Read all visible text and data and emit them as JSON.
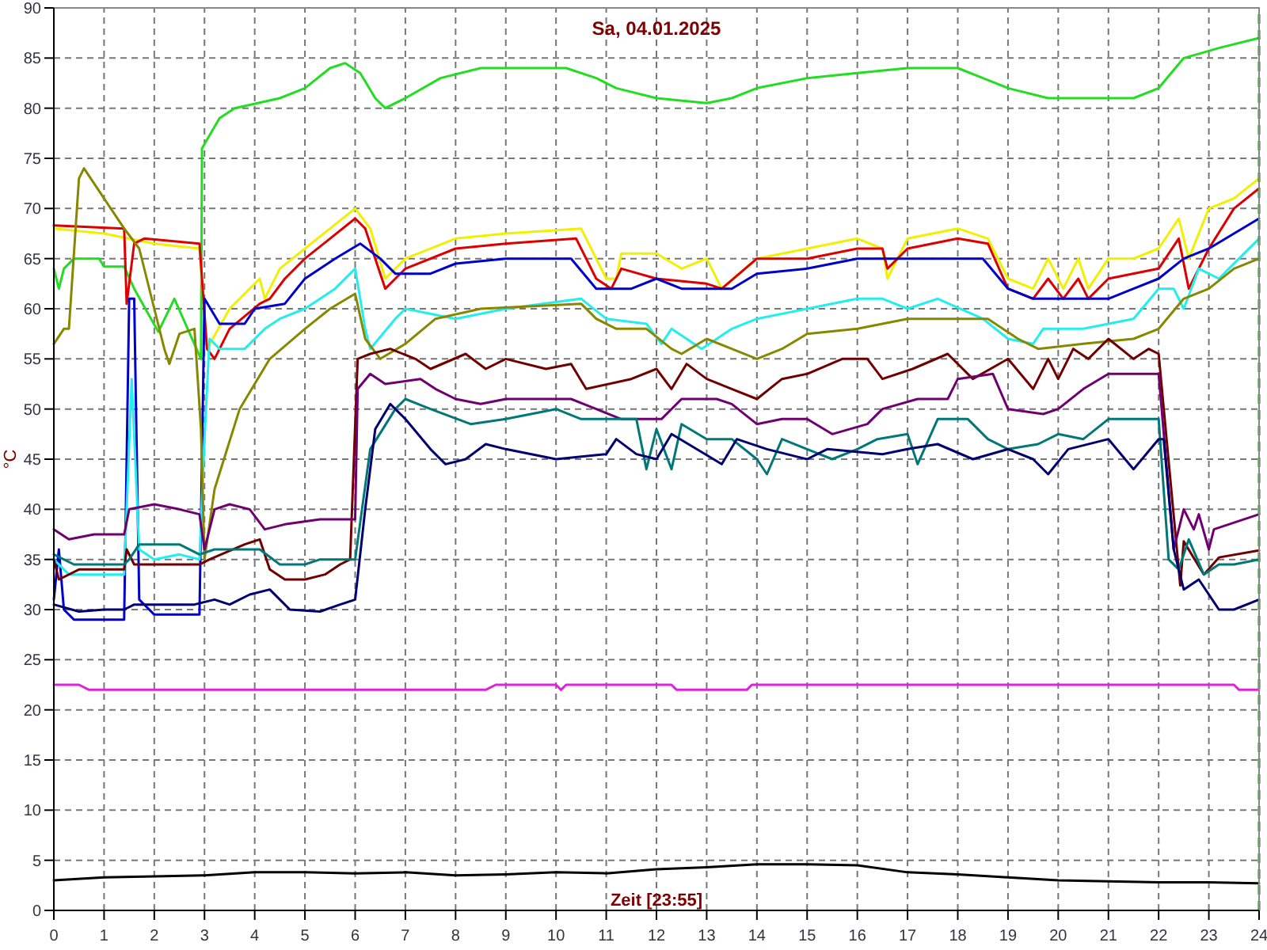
{
  "chart_data": {
    "type": "line",
    "title": "Sa, 04.01.2025",
    "xlabel": "Zeit [23:55]",
    "ylabel": "°C",
    "xlim": [
      0,
      24
    ],
    "ylim": [
      0,
      90
    ],
    "xticks": [
      0,
      1,
      2,
      3,
      4,
      5,
      6,
      7,
      8,
      9,
      10,
      11,
      12,
      13,
      14,
      15,
      16,
      17,
      18,
      19,
      20,
      21,
      22,
      23,
      24
    ],
    "yticks": [
      0,
      5,
      10,
      15,
      20,
      25,
      30,
      35,
      40,
      45,
      50,
      55,
      60,
      65,
      70,
      75,
      80,
      85,
      90
    ],
    "grid": true,
    "marker": "none",
    "line_style": "solid",
    "ref_lines": [
      {
        "axis": "x",
        "value": 24,
        "color": "#008800",
        "line_style": "dashed"
      }
    ],
    "series": [
      {
        "color": "#22dd22",
        "x": [
          0,
          0.1,
          0.2,
          0.4,
          0.9,
          1,
          1.4,
          1.6,
          2.08,
          2.4,
          2.93,
          2.95,
          3.3,
          3.6,
          4.5,
          5,
          5.5,
          5.8,
          6.1,
          6.4,
          6.6,
          7,
          7.7,
          8.5,
          10.2,
          10.8,
          11.2,
          12,
          13,
          13.5,
          14,
          15,
          16,
          17,
          18,
          18.5,
          19,
          19.8,
          21.5,
          22,
          22.5,
          23.2,
          24
        ],
        "values": [
          64,
          62,
          64,
          65,
          65,
          64.2,
          64.2,
          62,
          57.7,
          61,
          55,
          76,
          79,
          80,
          81,
          82,
          84,
          84.5,
          83.5,
          81,
          80,
          81,
          83,
          84,
          84,
          83,
          82,
          81,
          80.5,
          81,
          82,
          83,
          83.5,
          84,
          84,
          83,
          82,
          81,
          81,
          82,
          85,
          86,
          87
        ]
      },
      {
        "color": "#f0f000",
        "x": [
          0,
          1,
          2,
          2.9,
          3.05,
          3.5,
          4.1,
          4.2,
          4.5,
          5,
          5.5,
          6,
          6.3,
          6.6,
          7,
          8,
          9,
          10.5,
          10.6,
          11,
          11.2,
          11.3,
          12,
          12.5,
          13,
          13.3,
          14,
          15,
          16,
          16.5,
          16.6,
          17,
          18,
          18.6,
          19,
          19.5,
          19.8,
          20.1,
          20.4,
          20.6,
          21,
          21.5,
          22,
          22.4,
          22.6,
          23,
          23.5,
          24
        ],
        "values": [
          68,
          67.5,
          66.5,
          66,
          56,
          60,
          63,
          61,
          64,
          66,
          68,
          70,
          68,
          63,
          65,
          67,
          67.5,
          68,
          67,
          63,
          63,
          65.5,
          65.5,
          64,
          65,
          62,
          65,
          66,
          67,
          66,
          63,
          67,
          68,
          67,
          63,
          62,
          65,
          62,
          65,
          62,
          65,
          65,
          66,
          69,
          65,
          70,
          71,
          73
        ]
      },
      {
        "color": "#dd0000",
        "x": [
          0,
          1.4,
          1.45,
          1.6,
          1.8,
          2.9,
          3.05,
          3.2,
          3.5,
          4.1,
          4.3,
          4.6,
          5,
          5.5,
          6,
          6.2,
          6.6,
          7,
          8,
          9,
          10.4,
          10.8,
          11.1,
          11.3,
          12,
          13,
          13.3,
          14,
          15,
          16,
          16.5,
          16.6,
          17,
          18,
          18.6,
          19,
          19.5,
          19.8,
          20.1,
          20.4,
          20.6,
          21,
          22,
          22.4,
          22.6,
          23,
          23.5,
          24
        ],
        "values": [
          68.3,
          68,
          60.5,
          66.5,
          67,
          66.5,
          56,
          55,
          58,
          60.5,
          61,
          63,
          65,
          67,
          69,
          68,
          62,
          64,
          66,
          66.5,
          67,
          63,
          62,
          64,
          63,
          62.5,
          62,
          65,
          65,
          66,
          66,
          64,
          66,
          67,
          66.5,
          62,
          61,
          63,
          61,
          63,
          61,
          63,
          64,
          67,
          62,
          66,
          70,
          72
        ]
      },
      {
        "color": "#0000cc",
        "x": [
          0,
          0.1,
          0.2,
          0.4,
          1.4,
          1.5,
          1.6,
          1.7,
          2,
          2.9,
          3,
          3.3,
          3.8,
          4,
          4.6,
          5,
          5.6,
          6.1,
          6.5,
          6.8,
          7.5,
          8,
          9,
          10.3,
          10.8,
          11.5,
          12,
          12.5,
          13.5,
          14,
          15,
          16,
          17,
          18.5,
          19,
          19.5,
          21,
          21.5,
          22,
          22.5,
          23,
          23.5,
          24
        ],
        "values": [
          31,
          36,
          30,
          29,
          29,
          61,
          61,
          31,
          29.5,
          29.5,
          61,
          58.5,
          58.5,
          60,
          60.5,
          63,
          65,
          66.5,
          65,
          63.5,
          63.5,
          64.5,
          65,
          65,
          62,
          62,
          63,
          62,
          62,
          63.5,
          64,
          65,
          65,
          65,
          62,
          61,
          61,
          62,
          63,
          65,
          66,
          67.5,
          69
        ]
      },
      {
        "color": "#22eeee",
        "x": [
          0,
          0.3,
          1.4,
          1.55,
          1.7,
          2,
          2.5,
          2.9,
          3,
          3.1,
          3.3,
          3.8,
          4.2,
          4.5,
          5,
          5.6,
          6,
          6.2,
          6.3,
          6.8,
          7,
          8,
          9,
          10.5,
          11,
          11.8,
          12.1,
          12.3,
          12.9,
          13.5,
          14,
          15,
          16,
          16.5,
          17,
          17.6,
          18.5,
          19,
          19.5,
          19.7,
          20.5,
          21.5,
          22,
          22.3,
          22.5,
          22.8,
          23.2,
          23.6,
          24
        ],
        "values": [
          35,
          33.5,
          33.5,
          53,
          36,
          35,
          35.5,
          35,
          47,
          57,
          56,
          56,
          58,
          59,
          60,
          62,
          64,
          58,
          56,
          59,
          60,
          59,
          60,
          61,
          59,
          58.5,
          56.5,
          58,
          56,
          58,
          59,
          60,
          61,
          61,
          60,
          61,
          59,
          57,
          56.5,
          58,
          58,
          59,
          62,
          62,
          60,
          64,
          63,
          65,
          67
        ]
      },
      {
        "color": "#888800",
        "x": [
          0,
          0.2,
          0.3,
          0.5,
          0.6,
          1,
          1.4,
          1.7,
          2,
          2.2,
          2.3,
          2.5,
          2.8,
          2.93,
          3,
          3.2,
          3.7,
          4.3,
          5,
          5.5,
          6,
          6.2,
          6.5,
          7,
          7.6,
          8.5,
          10.5,
          10.8,
          11.2,
          11.8,
          12.3,
          12.5,
          13,
          13.5,
          14,
          14.5,
          15,
          16,
          17,
          18.6,
          19.2,
          19.6,
          20.5,
          21.5,
          22,
          22.5,
          23,
          23.5,
          24
        ],
        "values": [
          56.5,
          58,
          58,
          73,
          74,
          71,
          68,
          66,
          60,
          56,
          54.5,
          57.5,
          58,
          48,
          35,
          42,
          50,
          55,
          58,
          60,
          61.5,
          57,
          55,
          56.5,
          59,
          60,
          60.5,
          59,
          58,
          58,
          56,
          55.5,
          57,
          56,
          55,
          56,
          57.5,
          58,
          59,
          59,
          57,
          56,
          56.5,
          57,
          58,
          61,
          62,
          64,
          65
        ]
      },
      {
        "color": "#700000",
        "x": [
          0,
          0.1,
          0.5,
          1.4,
          1.45,
          1.6,
          2.9,
          3.1,
          3.8,
          4.1,
          4.3,
          4.6,
          5,
          5.4,
          5.7,
          5.9,
          6.05,
          6.3,
          6.7,
          7.2,
          7.5,
          8.2,
          8.6,
          9,
          9.8,
          10.3,
          10.6,
          11.5,
          12,
          12.3,
          12.6,
          13,
          13.5,
          14,
          14.5,
          15,
          15.7,
          16.2,
          16.5,
          17.1,
          17.8,
          18.3,
          19,
          19.5,
          19.8,
          20,
          20.3,
          20.6,
          21,
          21.5,
          21.8,
          22,
          22.43,
          22.5,
          22.9,
          23.2,
          24
        ],
        "values": [
          35,
          33,
          34,
          34,
          36,
          34.5,
          34.5,
          35,
          36.5,
          37,
          34,
          33,
          33,
          33.5,
          34.5,
          35,
          55,
          55.5,
          56,
          55,
          54,
          55.5,
          54,
          55,
          54,
          54.5,
          52,
          53,
          54,
          52,
          54.5,
          53,
          52,
          51,
          53,
          53.5,
          55,
          55,
          53,
          54,
          55.5,
          53,
          55,
          52,
          55,
          53,
          56,
          55,
          57,
          55,
          56,
          55.5,
          32.4,
          36.8,
          33.5,
          35.2,
          35.9
        ]
      },
      {
        "color": "#700070",
        "x": [
          0,
          0.3,
          0.8,
          1.4,
          1.5,
          2,
          2.5,
          2.9,
          3,
          3.2,
          3.5,
          3.9,
          4.2,
          4.6,
          5.3,
          6,
          6.05,
          6.3,
          6.6,
          7.3,
          7.6,
          8,
          8.5,
          9,
          10.3,
          10.8,
          11.3,
          12.1,
          12.5,
          13.2,
          13.5,
          14,
          14.5,
          15,
          15.5,
          16.2,
          16.5,
          17.2,
          17.8,
          18,
          18.7,
          19,
          19.7,
          20,
          20.5,
          21,
          21.8,
          22,
          22.3,
          22.5,
          22.7,
          22.8,
          23,
          23.1,
          24
        ],
        "values": [
          38,
          37,
          37.5,
          37.5,
          40,
          40.5,
          40,
          39.5,
          36,
          40,
          40.5,
          40,
          38,
          38.5,
          39,
          39,
          52,
          53.5,
          52.5,
          53,
          52,
          51,
          50.5,
          51,
          51,
          50,
          49,
          49,
          51,
          51,
          50.5,
          48.5,
          49,
          49,
          47.5,
          48.5,
          50,
          51,
          51,
          53,
          53.5,
          50,
          49.5,
          50,
          52,
          53.5,
          53.5,
          53.5,
          36,
          40,
          38,
          39.5,
          36,
          38,
          39.5
        ]
      },
      {
        "color": "#007878",
        "x": [
          0,
          0.4,
          1.4,
          1.5,
          1.7,
          2.5,
          2.9,
          3.2,
          4.1,
          4.5,
          5,
          5.3,
          6,
          6.3,
          6.8,
          7,
          7.5,
          8.3,
          9,
          10,
          10.5,
          11.6,
          11.8,
          12,
          12.3,
          12.5,
          13,
          13.5,
          14,
          14.2,
          14.5,
          15,
          15.5,
          16,
          16.4,
          17,
          17.2,
          17.6,
          18.2,
          18.6,
          19,
          19.6,
          20,
          20.5,
          21,
          21.7,
          22,
          22.2,
          22.4,
          22.6,
          22.9,
          23.2,
          23.5,
          24
        ],
        "values": [
          35.5,
          34.5,
          34.5,
          35,
          36.5,
          36.5,
          35.5,
          36,
          36,
          34.5,
          34.5,
          35,
          35,
          46,
          50,
          51,
          50,
          48.5,
          49,
          50,
          49,
          49,
          44,
          48,
          44,
          48.5,
          47,
          47,
          45,
          43.5,
          47,
          46,
          45,
          46,
          47,
          47.5,
          44.5,
          49,
          49,
          47,
          46,
          46.5,
          47.5,
          47,
          49,
          49,
          49,
          35,
          34,
          37,
          33.5,
          34.5,
          34.5,
          35
        ]
      },
      {
        "color": "#000070",
        "x": [
          0,
          0.5,
          1,
          1.4,
          1.6,
          2.8,
          3.2,
          3.5,
          3.9,
          4.3,
          4.7,
          5.3,
          5.7,
          6,
          6.2,
          6.4,
          6.7,
          7,
          7.5,
          7.8,
          8.2,
          8.6,
          9,
          10,
          11,
          11.2,
          11.6,
          12,
          12.3,
          12.8,
          13.3,
          13.6,
          14.2,
          15,
          15.4,
          16.5,
          17,
          17.6,
          18.3,
          19,
          19.5,
          19.8,
          20.2,
          21,
          21.5,
          22,
          22.1,
          22.3,
          22.5,
          22.8,
          23.2,
          23.5,
          24
        ],
        "values": [
          30.5,
          29.8,
          30,
          30,
          30.5,
          30.5,
          31,
          30.5,
          31.5,
          32,
          30,
          29.8,
          30.5,
          31,
          40,
          48,
          50.5,
          49,
          46,
          44.5,
          45,
          46.5,
          46,
          45,
          45.5,
          47,
          45.5,
          45,
          47.5,
          46,
          44.5,
          47,
          46,
          45,
          46,
          45.5,
          46,
          46.5,
          45,
          46,
          45,
          43.5,
          46,
          47,
          44,
          47,
          47,
          36,
          32,
          33,
          30,
          30,
          31
        ]
      },
      {
        "color": "#dd22dd",
        "x": [
          0,
          0.5,
          0.7,
          8.6,
          8.8,
          10,
          10.1,
          10.2,
          12.3,
          12.4,
          13.8,
          13.9,
          23.5,
          23.6,
          24
        ],
        "values": [
          22.5,
          22.5,
          22,
          22,
          22.5,
          22.5,
          22,
          22.5,
          22.5,
          22,
          22,
          22.5,
          22.5,
          22,
          22
        ]
      },
      {
        "color": "#000000",
        "x": [
          0,
          1,
          2,
          3,
          4,
          5,
          6,
          7,
          8,
          9,
          10,
          11,
          12,
          13,
          14,
          15,
          16,
          17,
          18,
          19,
          20,
          21,
          22,
          23,
          24
        ],
        "values": [
          3,
          3.3,
          3.4,
          3.5,
          3.8,
          3.8,
          3.7,
          3.8,
          3.5,
          3.6,
          3.8,
          3.7,
          4.1,
          4.3,
          4.6,
          4.6,
          4.5,
          3.8,
          3.6,
          3.3,
          3,
          2.9,
          2.8,
          2.8,
          2.7
        ]
      }
    ]
  }
}
